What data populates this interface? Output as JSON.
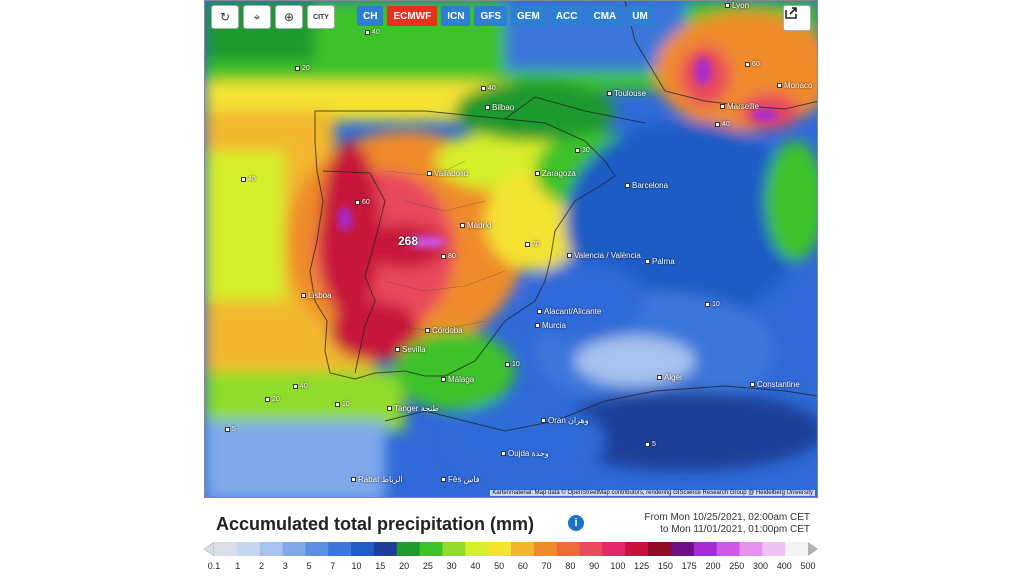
{
  "toolbar": {
    "tools": [
      {
        "name": "refresh-icon",
        "glyph": "↻"
      },
      {
        "name": "location-pin-icon",
        "glyph": "⌖"
      },
      {
        "name": "zoom-icon",
        "glyph": "⊕"
      },
      {
        "name": "city-icon",
        "glyph": "CITY"
      }
    ],
    "models": [
      "CH",
      "ECMWF",
      "ICN",
      "GFS",
      "GEM",
      "ACC",
      "CMA",
      "UM"
    ],
    "active_model": "ECMWF"
  },
  "map": {
    "max_value": "268",
    "places": [
      "Bilbao",
      "Toulouse",
      "Marseille",
      "Monaco",
      "Valladolid",
      "Zaragoza",
      "Barcelona",
      "Madrid",
      "Valencia / València",
      "Palma",
      "Lisboa",
      "Alacant/Alicante",
      "Murcia",
      "Córdoba",
      "Sevilla",
      "Málaga",
      "Alger",
      "Constantine",
      "Tanger طنجة",
      "Oran وهران",
      "Oujda وجدة",
      "Rabat الرباط",
      "Fès فاس",
      "Lyon"
    ],
    "contour_labels": [
      "40",
      "20",
      "40",
      "60",
      "80",
      "40",
      "20",
      "10",
      "5",
      "10",
      "20",
      "30",
      "40",
      "10",
      "5",
      "40",
      "60"
    ],
    "attribution": "Kartenmaterial: Map data © OpenStreetMap contributors, rendering GIScience Research Group @ Heidelberg University"
  },
  "legend": {
    "title": "Accumulated total precipitation (mm)",
    "period_from": "From Mon 10/25/2021, 02:00am CET",
    "period_to": "to Mon 11/01/2021, 01:00pm CET",
    "labels": [
      "0.1",
      "1",
      "2",
      "3",
      "5",
      "7",
      "10",
      "15",
      "20",
      "25",
      "30",
      "40",
      "50",
      "60",
      "70",
      "80",
      "90",
      "100",
      "125",
      "150",
      "175",
      "200",
      "250",
      "300",
      "400",
      "500"
    ],
    "colors": [
      "#d9dde8",
      "#c7d7f2",
      "#a6c2ee",
      "#7fa9ea",
      "#5a8fe3",
      "#3b77da",
      "#1f5cc4",
      "#1d3f99",
      "#1f9a2d",
      "#3ec22a",
      "#8fdc2a",
      "#d7ee2c",
      "#f4e330",
      "#f2b72d",
      "#ef8b2a",
      "#ef6b3a",
      "#e94a5c",
      "#e0286a",
      "#c8123b",
      "#8e0c26",
      "#6e0f86",
      "#a52cd1",
      "#d058e8",
      "#e691ee",
      "#eec3f4",
      "#f4f4f4"
    ]
  }
}
